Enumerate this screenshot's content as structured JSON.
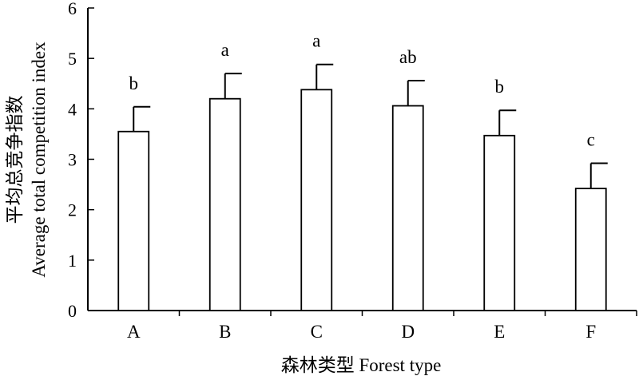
{
  "chart_data": {
    "type": "bar",
    "title": "",
    "xlabel": "森林类型 Forest type",
    "ylabel_cn": "平均总竞争指数",
    "ylabel_en": "Average total competition index",
    "ylim": [
      0,
      6
    ],
    "yticks": [
      0,
      1,
      2,
      3,
      4,
      5,
      6
    ],
    "categories": [
      "A",
      "B",
      "C",
      "D",
      "E",
      "F"
    ],
    "values": [
      3.55,
      4.2,
      4.38,
      4.06,
      3.47,
      2.42
    ],
    "errors": [
      0.49,
      0.5,
      0.5,
      0.5,
      0.5,
      0.5
    ],
    "significance": [
      "b",
      "a",
      "a",
      "ab",
      "b",
      "c"
    ],
    "grid": false,
    "bar_fill": "#ffffff",
    "bar_stroke": "#000000"
  }
}
